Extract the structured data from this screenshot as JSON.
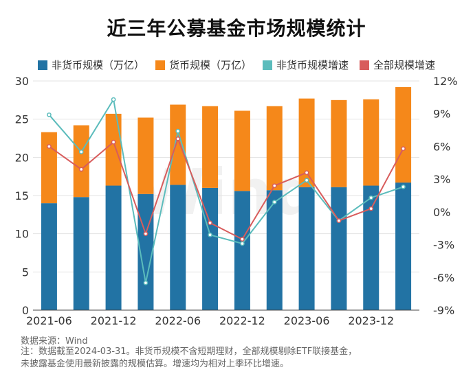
{
  "chart_data": {
    "type": "bar",
    "title": "近三年公募基金市场规模统计",
    "stacked": true,
    "categories": [
      "2021-06",
      "2021-09",
      "2021-12",
      "2022-03",
      "2022-06",
      "2022-09",
      "2022-12",
      "2023-03",
      "2023-06",
      "2023-09",
      "2023-12",
      "2024-03"
    ],
    "x_tick_labels": [
      "2021-06",
      "2021-12",
      "2022-06",
      "2022-12",
      "2023-06",
      "2023-12"
    ],
    "series": [
      {
        "name": "非货币规模（万亿）",
        "kind": "bar",
        "axis": "left",
        "color": "#2273a4",
        "values": [
          14.0,
          14.8,
          16.3,
          15.2,
          16.4,
          16.0,
          15.6,
          15.7,
          16.1,
          16.1,
          16.3,
          16.7
        ]
      },
      {
        "name": "货币规模（万亿）",
        "kind": "bar",
        "axis": "left",
        "color": "#f5881a",
        "values": [
          9.3,
          9.4,
          9.4,
          10.0,
          10.5,
          10.7,
          10.5,
          11.0,
          11.6,
          11.4,
          11.3,
          12.5
        ]
      },
      {
        "name": "非货币规模增速",
        "kind": "line",
        "axis": "right",
        "color": "#5bbcbc",
        "values": [
          8.9,
          5.5,
          10.3,
          -6.5,
          7.4,
          -2.1,
          -2.9,
          0.9,
          2.9,
          -0.8,
          1.3,
          2.3
        ]
      },
      {
        "name": "全部规模增速",
        "kind": "line",
        "axis": "right",
        "color": "#d85c5c",
        "values": [
          6.0,
          3.9,
          6.4,
          -2.0,
          6.7,
          -1.0,
          -2.5,
          2.4,
          3.6,
          -0.8,
          0.3,
          5.8
        ]
      }
    ],
    "y_left": {
      "min": 0,
      "max": 30,
      "ticks": [
        0,
        5,
        10,
        15,
        20,
        25,
        30
      ]
    },
    "y_right": {
      "min": -9,
      "max": 12,
      "ticks": [
        "-9%",
        "-6%",
        "-3%",
        "0%",
        "3%",
        "6%",
        "9%",
        "12%"
      ]
    },
    "grid": true,
    "legend_position": "top",
    "watermark": "Wind"
  },
  "source": "数据来源：Wind",
  "note_line1": "注：数据截至2024-03-31。非货币规模不含短期理财，全部规模剔除ETF联接基金，",
  "note_line2": "未披露基金使用最新披露的规模估算。增速均为相对上季环比增速。"
}
